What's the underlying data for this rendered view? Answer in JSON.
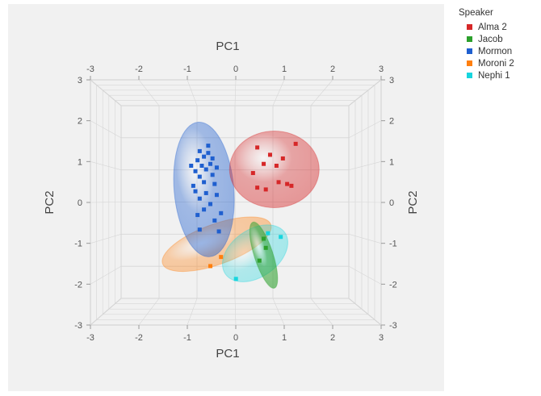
{
  "chart_data": {
    "type": "scatter",
    "projection": "3d-biplot",
    "xlabel": "PC1",
    "ylabel": "PC2",
    "xlim": [
      -3,
      3
    ],
    "ylim": [
      -3,
      3
    ],
    "x_ticks": [
      "-3",
      "-2",
      "-1",
      "0",
      "1",
      "2",
      "3"
    ],
    "y_ticks": [
      "3",
      "2",
      "1",
      "0",
      "-1",
      "-2",
      "-3"
    ],
    "grid": true,
    "legend_placement": "right",
    "legend_title": "Speaker",
    "series": [
      {
        "name": "Alma 2",
        "color": "#d62728",
        "ellipsoid": {
          "cx": 0.8,
          "cy": 0.9,
          "rx": 1.05,
          "ry": 1.05,
          "angle": 0,
          "opacity": 0.45
        },
        "points": [
          [
            0.4,
            1.5
          ],
          [
            0.7,
            1.3
          ],
          [
            1.0,
            1.2
          ],
          [
            1.3,
            1.6
          ],
          [
            0.3,
            0.8
          ],
          [
            0.55,
            1.05
          ],
          [
            0.9,
            0.55
          ],
          [
            1.1,
            0.5
          ],
          [
            1.2,
            0.45
          ],
          [
            0.6,
            0.35
          ],
          [
            0.4,
            0.4
          ],
          [
            0.85,
            1.0
          ]
        ]
      },
      {
        "name": "Jacob",
        "color": "#2ca02c",
        "ellipsoid": {
          "cx": 0.55,
          "cy": -1.45,
          "rx": 0.22,
          "ry": 0.95,
          "angle": -18,
          "opacity": 0.6
        },
        "points": [
          [
            0.55,
            -1.0
          ],
          [
            0.45,
            -1.6
          ],
          [
            0.6,
            -1.25
          ]
        ]
      },
      {
        "name": "Mormon",
        "color": "#1f5fcf",
        "ellipsoid": {
          "cx": -0.85,
          "cy": 0.35,
          "rx": 0.7,
          "ry": 1.85,
          "angle": -5,
          "opacity": 0.45
        },
        "points": [
          [
            -0.95,
            1.4
          ],
          [
            -0.85,
            1.25
          ],
          [
            -1.0,
            1.15
          ],
          [
            -0.9,
            1.0
          ],
          [
            -0.8,
            0.9
          ],
          [
            -1.05,
            0.85
          ],
          [
            -0.75,
            1.35
          ],
          [
            -0.7,
            1.05
          ],
          [
            -0.95,
            0.7
          ],
          [
            -0.85,
            0.55
          ],
          [
            -0.65,
            0.75
          ],
          [
            -1.1,
            0.45
          ],
          [
            -0.8,
            0.25
          ],
          [
            -0.6,
            0.5
          ],
          [
            -0.95,
            0.1
          ],
          [
            -0.7,
            -0.05
          ],
          [
            -0.55,
            0.2
          ],
          [
            -0.85,
            -0.2
          ],
          [
            -0.45,
            -0.3
          ],
          [
            -1.0,
            -0.35
          ],
          [
            -0.6,
            -0.5
          ],
          [
            -0.95,
            -0.75
          ],
          [
            -0.5,
            -0.8
          ],
          [
            -0.75,
            1.55
          ],
          [
            -1.15,
            1.0
          ],
          [
            -0.55,
            0.95
          ],
          [
            -0.65,
            1.2
          ],
          [
            -1.05,
            0.3
          ]
        ]
      },
      {
        "name": "Moroni 2",
        "color": "#ff7f0e",
        "ellipsoid": {
          "cx": -0.55,
          "cy": -1.15,
          "rx": 1.35,
          "ry": 0.55,
          "angle": -20,
          "opacity": 0.4
        },
        "points": [
          [
            -0.45,
            -1.5
          ],
          [
            -0.7,
            -1.75
          ]
        ]
      },
      {
        "name": "Nephi 1",
        "color": "#17d5de",
        "ellipsoid": {
          "cx": 0.35,
          "cy": -1.4,
          "rx": 0.85,
          "ry": 0.65,
          "angle": -35,
          "opacity": 0.35
        },
        "points": [
          [
            0.65,
            -0.85
          ],
          [
            0.95,
            -0.95
          ],
          [
            -0.1,
            -2.1
          ]
        ]
      }
    ]
  }
}
